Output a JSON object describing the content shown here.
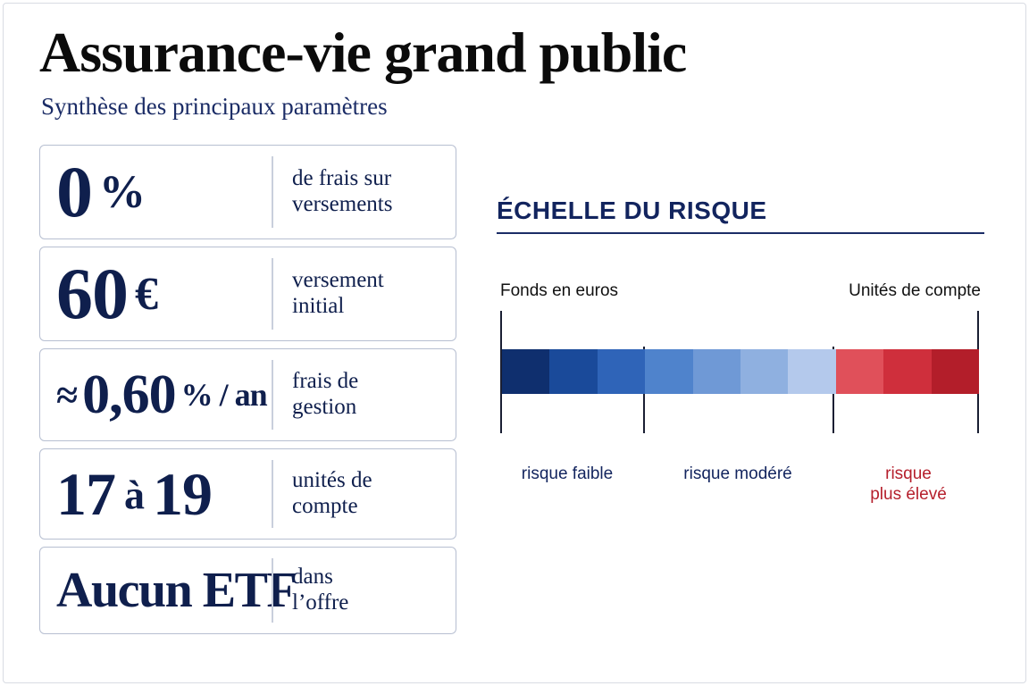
{
  "title": "Assurance-vie grand public",
  "subtitle": "Synthèse des principaux paramètres",
  "cards": [
    {
      "value": "0",
      "unit": "%",
      "desc": [
        "de frais sur",
        "versements"
      ]
    },
    {
      "value": "60",
      "unit": "€",
      "desc": [
        "versement",
        "initial"
      ]
    },
    {
      "prefix": "≈",
      "value": "0,60",
      "unit": "% / an",
      "desc": [
        "frais de",
        "gestion"
      ]
    },
    {
      "value_a": "17",
      "joiner": "à",
      "value_b": "19",
      "desc": [
        "unités de",
        "compte"
      ]
    },
    {
      "value": "Aucun ETF",
      "desc": [
        "dans",
        "l’offre"
      ]
    }
  ],
  "risk_scale": {
    "title": "ÉCHELLE DU RISQUE",
    "left_label": "Fonds en euros",
    "right_label": "Unités de compte",
    "segments": [
      "#0f2f6e",
      "#1a4a9a",
      "#2f64b8",
      "#4f83cc",
      "#6f99d6",
      "#8fb0e0",
      "#b4c9ec",
      "#e0505a",
      "#cf2f3c",
      "#b31e2a"
    ],
    "zones": [
      {
        "label": [
          "risque faible"
        ],
        "color": "#12245e"
      },
      {
        "label": [
          "risque modéré"
        ],
        "color": "#12245e"
      },
      {
        "label": [
          "risque",
          "plus élevé"
        ],
        "color": "#b51f2c"
      }
    ]
  }
}
